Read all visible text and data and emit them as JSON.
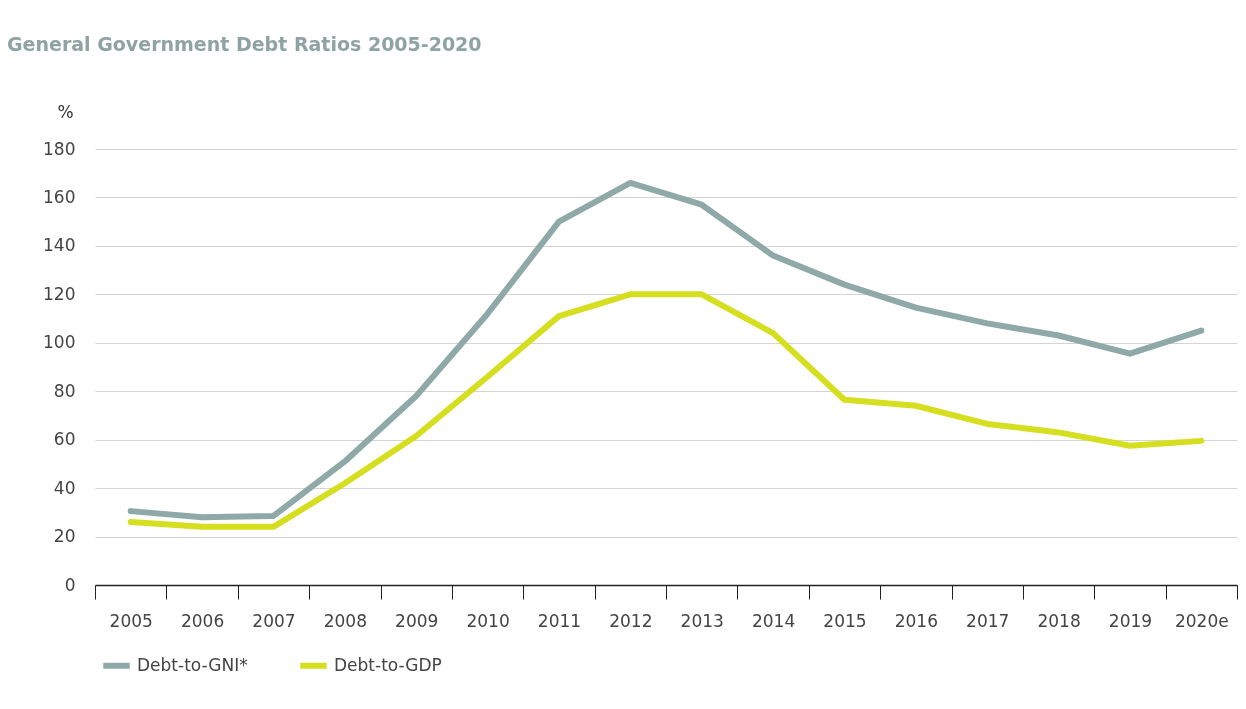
{
  "chart_data": {
    "type": "line",
    "title": "General Government Debt Ratios 2005-2020",
    "ylabel": "%",
    "categories": [
      "2005",
      "2006",
      "2007",
      "2008",
      "2009",
      "2010",
      "2011",
      "2012",
      "2013",
      "2014",
      "2015",
      "2016",
      "2017",
      "2018",
      "2019",
      "2020e"
    ],
    "series": [
      {
        "name": "Debt-to-GNI*",
        "color": "#8fa8a8",
        "values": [
          30.5,
          28,
          28.5,
          51,
          78,
          112,
          150,
          166,
          157,
          136,
          124,
          114.5,
          108,
          103,
          95.5,
          105
        ]
      },
      {
        "name": "Debt-to-GDP",
        "color": "#d5df1f",
        "values": [
          26,
          24,
          24,
          42,
          61.5,
          86,
          111,
          120,
          120,
          104,
          76.5,
          74,
          66.5,
          63,
          57.5,
          59.5
        ]
      }
    ],
    "ylim": [
      0,
      180
    ],
    "yticks": [
      0,
      20,
      40,
      60,
      80,
      100,
      120,
      140,
      160,
      180
    ],
    "grid": "y",
    "legend": "bottom left",
    "line_style": "solid",
    "marker": "none"
  }
}
